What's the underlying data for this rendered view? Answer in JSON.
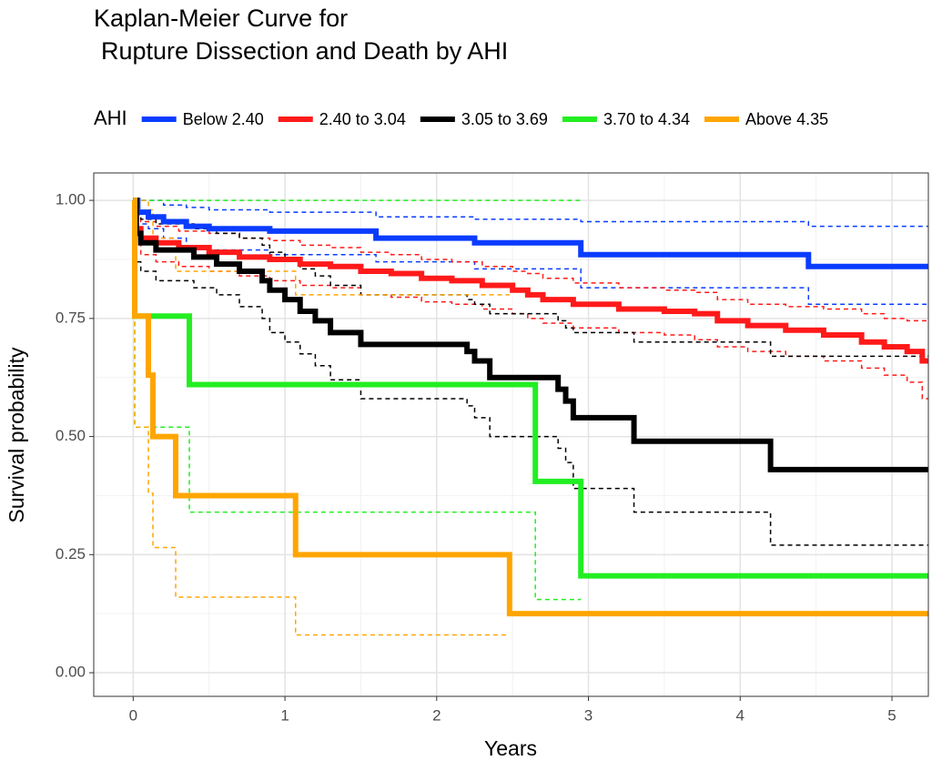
{
  "chart_data": {
    "type": "step",
    "title": [
      "Kaplan-Meier Curve for",
      "Rupture Dissection and Death by AHI"
    ],
    "x_label": "Years",
    "y_label": "Survival probability",
    "legend_title": "AHI",
    "legend_position": "top",
    "grid": true,
    "xlim": [
      -0.26,
      5.24
    ],
    "ylim": [
      -0.05,
      1.058
    ],
    "xticks": [
      0,
      1,
      2,
      3,
      4,
      5
    ],
    "yticks": [
      {
        "value": 0,
        "label": "0.00"
      },
      {
        "value": 0.25,
        "label": "0.25"
      },
      {
        "value": 0.5,
        "label": "0.50"
      },
      {
        "value": 0.75,
        "label": "0.75"
      },
      {
        "value": 1,
        "label": "1.00"
      }
    ],
    "series": [
      {
        "name": "Below 2.40",
        "color": "#0a3cff",
        "x": [
          0,
          0.03,
          0.1,
          0.2,
          0.35,
          0.5,
          0.9,
          1.6,
          2.25,
          2.95,
          4.45,
          5.24
        ],
        "values": [
          1,
          0.975,
          0.965,
          0.955,
          0.945,
          0.94,
          0.935,
          0.92,
          0.91,
          0.885,
          0.86,
          0.86
        ],
        "upper": [
          1,
          1,
          1,
          0.99,
          0.985,
          0.98,
          0.975,
          0.965,
          0.96,
          0.955,
          0.945,
          0.945
        ],
        "lower": [
          1,
          0.95,
          0.94,
          0.92,
          0.9,
          0.895,
          0.885,
          0.87,
          0.855,
          0.815,
          0.78,
          0.78
        ]
      },
      {
        "name": "2.40 to 3.04",
        "color": "#ff1a1a",
        "x": [
          0,
          0.02,
          0.05,
          0.15,
          0.3,
          0.5,
          0.7,
          0.9,
          1.1,
          1.3,
          1.5,
          1.7,
          1.9,
          2.1,
          2.3,
          2.5,
          2.6,
          2.7,
          2.9,
          3.2,
          3.5,
          3.7,
          3.85,
          4.05,
          4.3,
          4.55,
          4.8,
          4.95,
          5.1,
          5.2,
          5.24
        ],
        "values": [
          1,
          0.94,
          0.92,
          0.91,
          0.9,
          0.89,
          0.88,
          0.875,
          0.865,
          0.86,
          0.85,
          0.845,
          0.835,
          0.83,
          0.82,
          0.81,
          0.8,
          0.79,
          0.78,
          0.77,
          0.765,
          0.76,
          0.745,
          0.735,
          0.725,
          0.715,
          0.7,
          0.69,
          0.68,
          0.66,
          0.66
        ],
        "upper": [
          1,
          0.97,
          0.955,
          0.945,
          0.935,
          0.93,
          0.92,
          0.915,
          0.905,
          0.9,
          0.89,
          0.885,
          0.875,
          0.87,
          0.86,
          0.85,
          0.845,
          0.835,
          0.825,
          0.815,
          0.81,
          0.805,
          0.79,
          0.78,
          0.775,
          0.77,
          0.76,
          0.75,
          0.745,
          0.745,
          0.745
        ],
        "lower": [
          1,
          0.91,
          0.885,
          0.87,
          0.86,
          0.85,
          0.84,
          0.83,
          0.82,
          0.815,
          0.8,
          0.795,
          0.785,
          0.78,
          0.77,
          0.76,
          0.75,
          0.74,
          0.73,
          0.72,
          0.715,
          0.705,
          0.69,
          0.68,
          0.67,
          0.66,
          0.645,
          0.63,
          0.615,
          0.58,
          0.58
        ]
      },
      {
        "name": "3.05 to 3.69",
        "color": "#000000",
        "x": [
          0,
          0.02,
          0.05,
          0.15,
          0.4,
          0.55,
          0.7,
          0.85,
          0.9,
          1.0,
          1.1,
          1.2,
          1.3,
          1.5,
          2.2,
          2.25,
          2.35,
          2.8,
          2.85,
          2.9,
          3.3,
          4.2,
          5.24
        ],
        "values": [
          1,
          0.93,
          0.91,
          0.895,
          0.88,
          0.865,
          0.85,
          0.83,
          0.81,
          0.79,
          0.765,
          0.745,
          0.72,
          0.695,
          0.68,
          0.66,
          0.625,
          0.6,
          0.575,
          0.54,
          0.49,
          0.43,
          0.43
        ],
        "upper": [
          1,
          0.97,
          0.96,
          0.95,
          0.94,
          0.93,
          0.92,
          0.905,
          0.89,
          0.875,
          0.855,
          0.84,
          0.82,
          0.8,
          0.79,
          0.78,
          0.76,
          0.745,
          0.73,
          0.72,
          0.7,
          0.67,
          0.67
        ],
        "lower": [
          1,
          0.87,
          0.85,
          0.83,
          0.815,
          0.8,
          0.775,
          0.75,
          0.72,
          0.7,
          0.675,
          0.65,
          0.62,
          0.58,
          0.565,
          0.54,
          0.5,
          0.475,
          0.445,
          0.39,
          0.34,
          0.27,
          0.27
        ]
      },
      {
        "name": "3.70 to 4.34",
        "color": "#22ee22",
        "x": [
          0,
          0.01,
          0.37,
          2.65,
          2.95,
          5.24
        ],
        "values": [
          1,
          0.755,
          0.61,
          0.405,
          0.205,
          0.205
        ],
        "upper": [
          1,
          1,
          1,
          1,
          null,
          null
        ],
        "lower": [
          1,
          0.52,
          0.34,
          0.155,
          null,
          null
        ]
      },
      {
        "name": "Above 4.35",
        "color": "#ffa500",
        "x": [
          0,
          0.01,
          0.1,
          0.13,
          0.28,
          1.07,
          2.48,
          5.24
        ],
        "values": [
          1,
          0.755,
          0.63,
          0.5,
          0.375,
          0.25,
          0.125,
          0.125
        ],
        "upper": [
          1,
          1,
          0.98,
          0.92,
          0.85,
          0.8,
          null,
          null
        ],
        "lower": [
          1,
          0.52,
          0.38,
          0.265,
          0.16,
          0.08,
          null,
          null
        ]
      }
    ]
  }
}
